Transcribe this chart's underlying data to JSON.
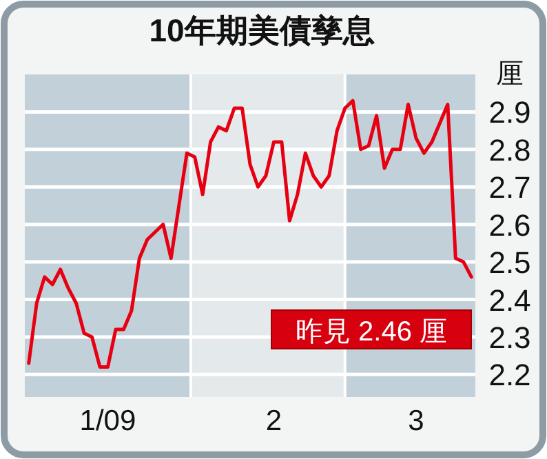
{
  "chart_data": {
    "type": "line",
    "title": "10年期美債孳息",
    "ylabel": "厘",
    "categories": [
      null,
      null,
      null,
      null,
      null,
      null,
      null,
      null,
      null,
      null,
      "1/09",
      null,
      null,
      null,
      null,
      null,
      null,
      null,
      null,
      null,
      null,
      null,
      null,
      null,
      null,
      null,
      null,
      null,
      null,
      null,
      null,
      "2",
      null,
      null,
      null,
      null,
      null,
      null,
      null,
      null,
      null,
      null,
      null,
      null,
      null,
      null,
      null,
      null,
      null,
      "3",
      null,
      null,
      null,
      null,
      null,
      null,
      null
    ],
    "series": [
      {
        "color": "#e60012",
        "values": [
          2.23,
          2.39,
          2.46,
          2.44,
          2.48,
          2.43,
          2.39,
          2.31,
          2.3,
          2.22,
          2.22,
          2.32,
          2.32,
          2.37,
          2.51,
          2.56,
          2.58,
          2.6,
          2.51,
          2.65,
          2.79,
          2.78,
          2.68,
          2.82,
          2.86,
          2.85,
          2.91,
          2.91,
          2.76,
          2.7,
          2.73,
          2.82,
          2.82,
          2.61,
          2.68,
          2.79,
          2.73,
          2.7,
          2.73,
          2.85,
          2.91,
          2.93,
          2.8,
          2.81,
          2.89,
          2.75,
          2.8,
          2.8,
          2.92,
          2.83,
          2.79,
          2.82,
          2.87,
          2.92,
          2.51,
          2.5,
          2.46
        ]
      }
    ],
    "ylim": [
      2.14,
      3.0
    ],
    "yticks": [
      2.2,
      2.3,
      2.4,
      2.5,
      2.6,
      2.7,
      2.8,
      2.9
    ],
    "grid": "y",
    "marker": "none",
    "line_style": "solid",
    "annotations": [
      "昨見 2.46 厘"
    ]
  }
}
